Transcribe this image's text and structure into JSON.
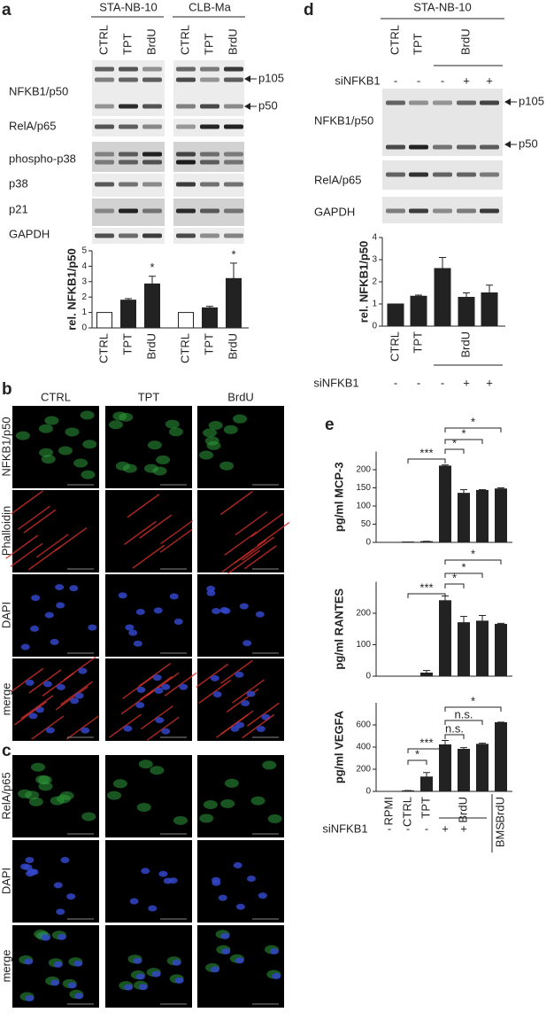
{
  "panel_a": {
    "label": "a",
    "cell_lines": [
      "STA-NB-10",
      "CLB-Ma"
    ],
    "lanes": [
      "CTRL",
      "TPT",
      "BrdU"
    ],
    "rows": [
      "NFKB1/p50",
      "RelA/p65",
      "phospho-p38",
      "p38",
      "p21",
      "GAPDH"
    ],
    "arrows": [
      "p105",
      "p50"
    ]
  },
  "panel_b": {
    "label": "b",
    "columns": [
      "CTRL",
      "TPT",
      "BrdU"
    ],
    "rows": [
      "NFKB1/p50",
      "Phalloidin",
      "DAPI",
      "merge"
    ]
  },
  "panel_c": {
    "label": "c",
    "rows": [
      "RelA/p65",
      "DAPI",
      "merge"
    ]
  },
  "panel_d": {
    "label": "d",
    "cell_line": "STA-NB-10",
    "lanes": [
      "CTRL",
      "TPT",
      null,
      "BrdU",
      null
    ],
    "sirna_label": "siNFKB1",
    "sirna": [
      "-",
      "-",
      "-",
      "+",
      "+"
    ],
    "rows": [
      "NFKB1/p50",
      "RelA/p65",
      "GAPDH"
    ],
    "arrows": [
      "p105",
      "p50"
    ]
  },
  "panel_e": {
    "label": "e",
    "sirna_label": "siNFKB1",
    "sirna": [
      "-",
      "-",
      "-",
      "+",
      "+"
    ],
    "treatment": "BMS"
  },
  "chart_data": [
    {
      "type": "bar",
      "ylabel": "rel. NFKB1/p50",
      "categories": [
        "CTRL",
        "TPT",
        "BrdU",
        "CTRL",
        "TPT",
        "BrdU"
      ],
      "values": [
        1,
        1.8,
        2.85,
        1,
        1.3,
        3.2
      ],
      "errors": [
        0,
        0.1,
        0.5,
        0,
        0.1,
        1.0
      ],
      "colors": [
        "#ffffff",
        "#222222",
        "#222222",
        "#ffffff",
        "#222222",
        "#222222"
      ],
      "significance": [
        null,
        null,
        "*",
        null,
        null,
        "*"
      ],
      "ylim": [
        0,
        5
      ],
      "yticks": [
        0,
        1,
        2,
        3,
        4,
        5
      ]
    },
    {
      "type": "bar",
      "ylabel": "rel. NFKB1/p50",
      "categories": [
        "CTRL",
        "TPT",
        null,
        "BrdU",
        null
      ],
      "values": [
        1,
        1.35,
        2.6,
        1.3,
        1.5
      ],
      "errors": [
        0,
        0.05,
        0.5,
        0.2,
        0.35
      ],
      "color": "#222222",
      "ylim": [
        0,
        4
      ],
      "yticks": [
        0,
        1,
        2,
        3,
        4
      ]
    },
    {
      "type": "bar",
      "ylabel": "pg/ml MCP-3",
      "values": [
        0,
        1,
        2,
        210,
        135,
        143,
        147
      ],
      "errors": [
        0,
        0,
        1,
        3,
        10,
        2,
        3
      ],
      "color": "#222222",
      "brackets": [
        "***",
        "*",
        "*",
        "*"
      ],
      "ylim": [
        0,
        250
      ],
      "yticks": [
        0,
        50,
        100,
        150,
        200
      ]
    },
    {
      "type": "bar",
      "ylabel": "pg/ml RANTES",
      "values": [
        0,
        0,
        10,
        240,
        170,
        175,
        165
      ],
      "errors": [
        0,
        0,
        8,
        15,
        20,
        18,
        3
      ],
      "color": "#222222",
      "brackets": [
        "***",
        "*",
        "*",
        "*"
      ],
      "ylim": [
        0,
        300
      ],
      "yticks": [
        0,
        100,
        200
      ]
    },
    {
      "type": "bar",
      "ylabel": "pg/ml VEGFA",
      "categories": [
        "RPMI",
        "CTRL",
        "TPT",
        null,
        "BrdU",
        null,
        "BrdU"
      ],
      "values": [
        0,
        5,
        130,
        420,
        380,
        425,
        620
      ],
      "errors": [
        0,
        3,
        40,
        40,
        15,
        10,
        5
      ],
      "color": "#222222",
      "brackets": [
        "*",
        "***",
        "n.s.",
        "n.s.",
        "*"
      ],
      "ylim": [
        0,
        800
      ],
      "yticks": [
        0,
        200,
        400,
        600
      ]
    }
  ]
}
